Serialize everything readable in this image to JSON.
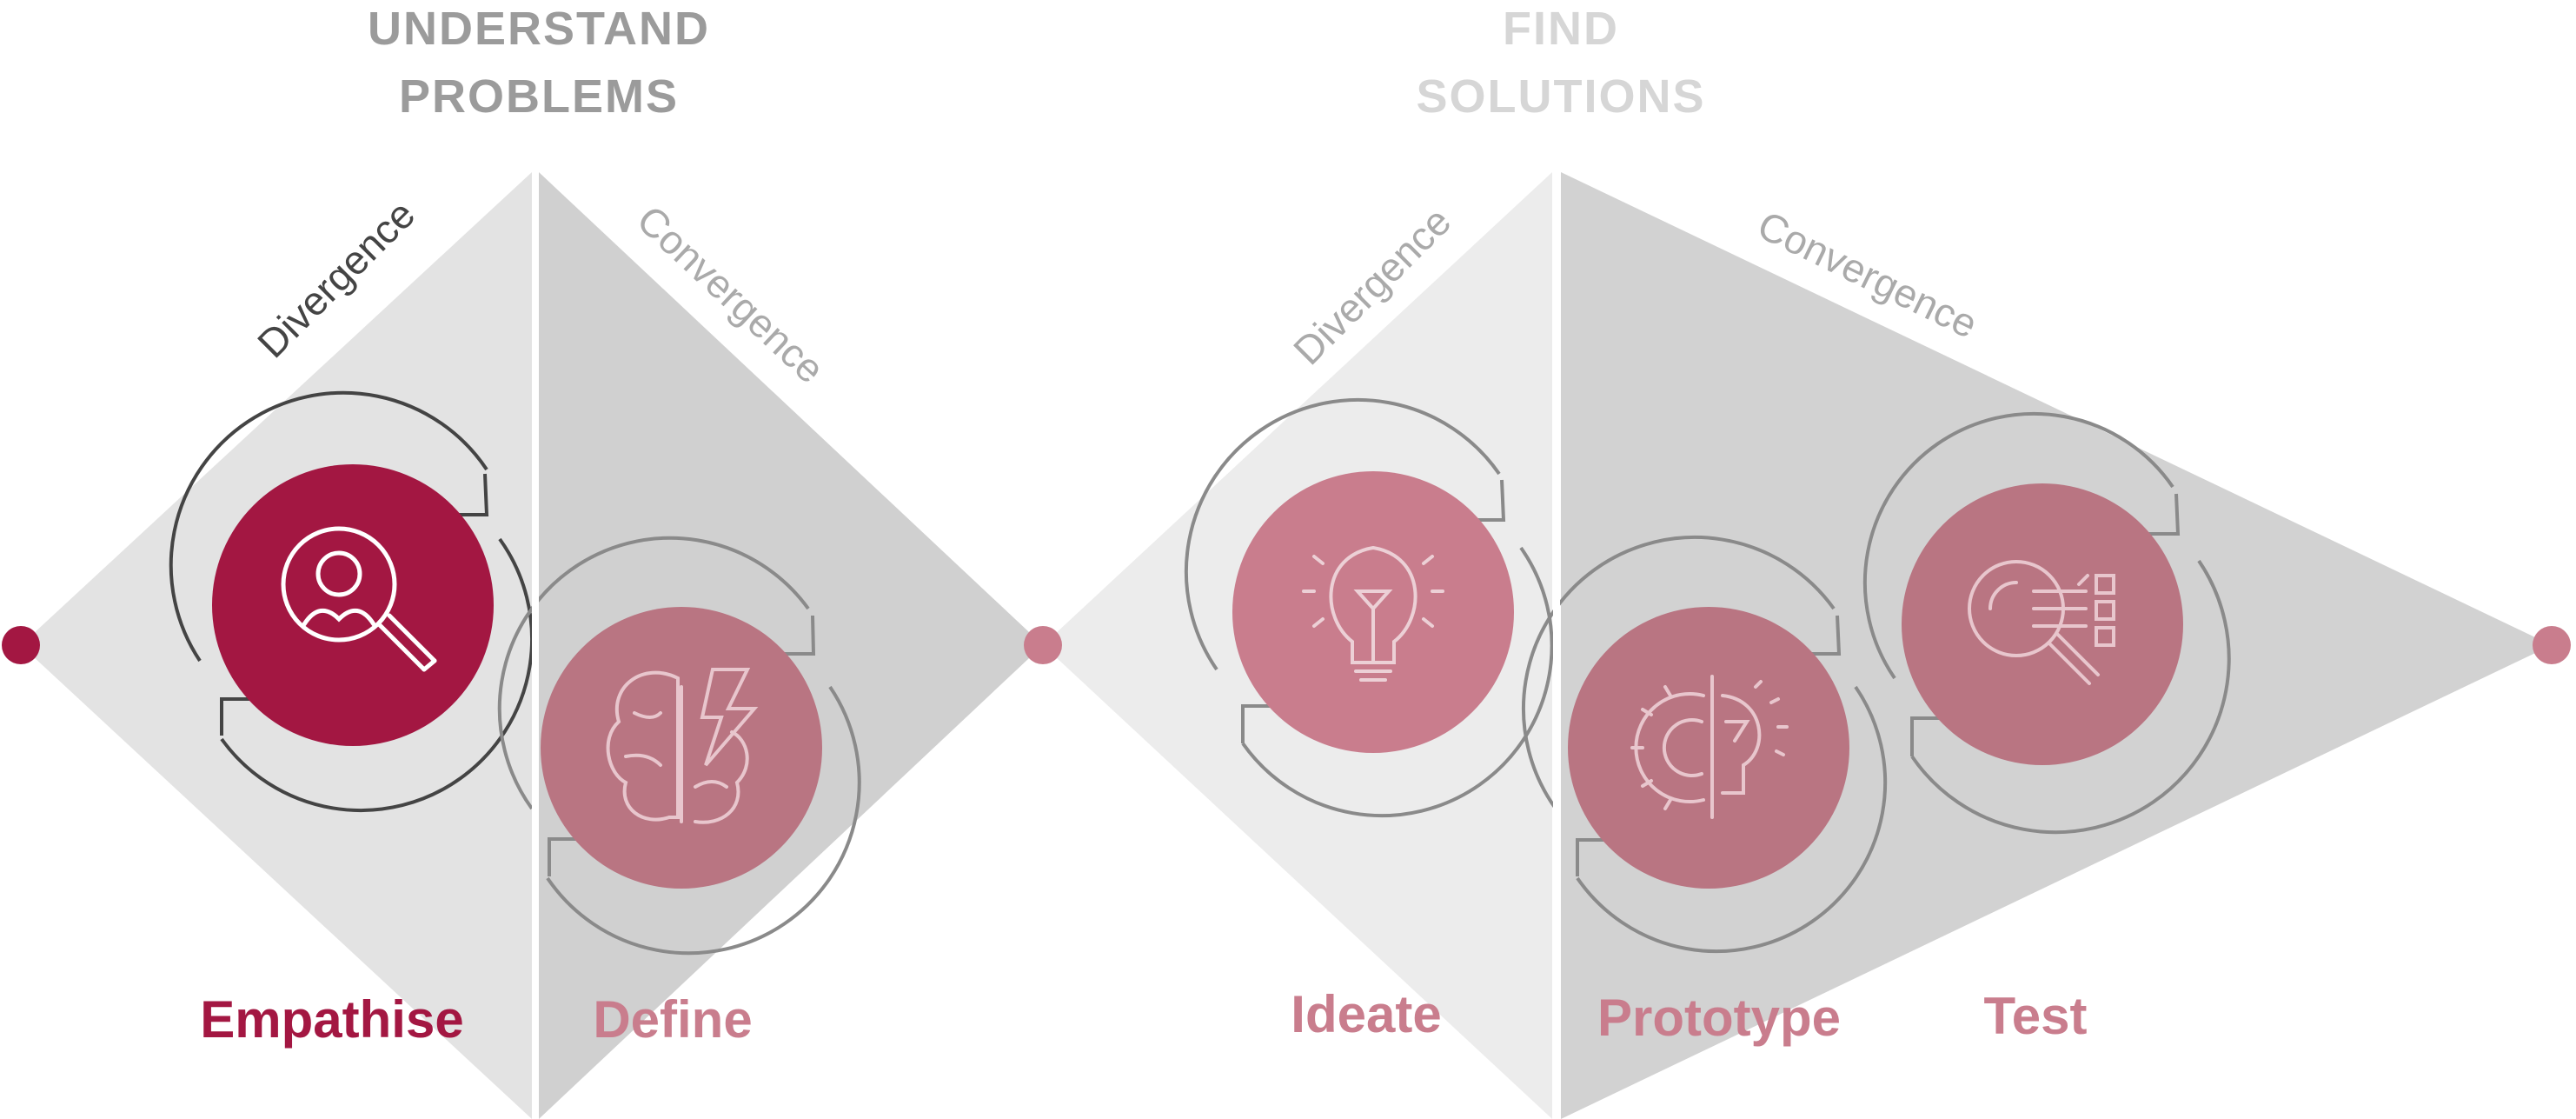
{
  "phases": [
    {
      "title_line1": "UNDERSTAND",
      "title_line2": "PROBLEMS",
      "color": "#9b9b9b",
      "divergence": "Divergence",
      "convergence": "Convergence"
    },
    {
      "title_line1": "FIND",
      "title_line2": "SOLUTIONS",
      "color": "#d6d6d6",
      "divergence": "Divergence",
      "convergence": "Convergence"
    }
  ],
  "steps": [
    {
      "label": "Empathise",
      "icon": "search-person-icon",
      "active": true
    },
    {
      "label": "Define",
      "icon": "brain-bolt-icon",
      "active": false
    },
    {
      "label": "Ideate",
      "icon": "lightbulb-icon",
      "active": false
    },
    {
      "label": "Prototype",
      "icon": "gear-bulb-icon",
      "active": false
    },
    {
      "label": "Test",
      "icon": "search-checklist-icon",
      "active": false
    }
  ],
  "colors": {
    "active": "#a31742",
    "inactive": "#c97d8d",
    "inactive_dark": "#b97582",
    "diamond_light": "#e6e6e6",
    "diamond_mid": "#d0d0d0",
    "text_dark": "#444444",
    "text_grey": "#aaaaaa"
  }
}
